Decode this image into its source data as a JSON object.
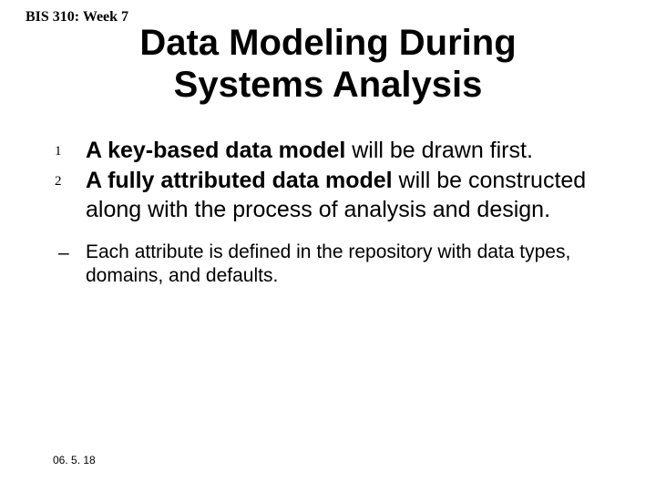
{
  "header": {
    "course_label": "BIS 310: Week 7"
  },
  "title": {
    "line1": "Data Modeling During",
    "line2": "Systems Analysis"
  },
  "list": {
    "items": [
      {
        "marker": "1",
        "bold": "A key-based data model",
        "rest": " will be drawn first."
      },
      {
        "marker": "2",
        "bold": "A fully attributed data model",
        "rest": " will be constructed along with the process of analysis and design."
      }
    ],
    "sub": {
      "marker": "–",
      "text": "Each attribute is defined in the repository with data types, domains, and defaults."
    }
  },
  "footer": {
    "date": "06. 5. 18"
  },
  "style": {
    "background_color": "#ffffff",
    "text_color": "#000000",
    "title_fontsize": 40,
    "body_fontsize": 25,
    "sub_fontsize": 21,
    "header_fontsize": 16,
    "footer_fontsize": 12
  }
}
